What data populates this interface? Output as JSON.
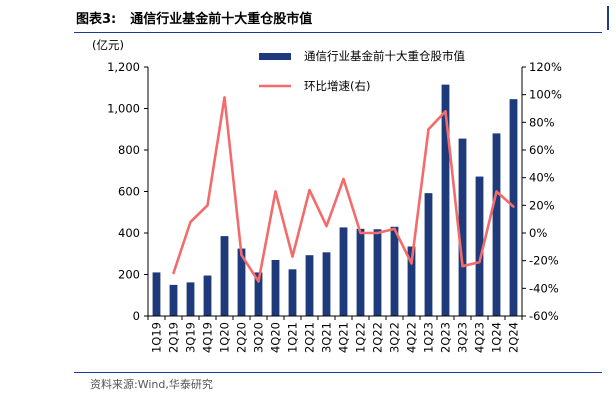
{
  "header": {
    "figure_label": "图表3:",
    "title": "通信行业基金前十大重仓股市值"
  },
  "footer": {
    "source": "资料来源:Wind,华泰研究"
  },
  "chart_data": {
    "type": "bar",
    "categories": [
      "1Q19",
      "2Q19",
      "3Q19",
      "4Q19",
      "1Q20",
      "2Q20",
      "3Q20",
      "4Q20",
      "1Q21",
      "2Q21",
      "3Q21",
      "4Q21",
      "1Q22",
      "2Q22",
      "3Q22",
      "4Q22",
      "1Q23",
      "2Q23",
      "3Q23",
      "4Q23",
      "1Q24",
      "2Q24"
    ],
    "left_axis_unit": "(亿元)",
    "left_ticks": [
      "0",
      "200",
      "400",
      "600",
      "800",
      "1,000",
      "1,200"
    ],
    "right_ticks": [
      "-60%",
      "-40%",
      "-20%",
      "0%",
      "20%",
      "40%",
      "60%",
      "80%",
      "100%",
      "120%"
    ],
    "ylim_left": [
      0,
      1200
    ],
    "ylim_right": [
      -60,
      120
    ],
    "series": [
      {
        "name": "通信行业基金前十大重仓股市值",
        "type": "bar",
        "axis": "left",
        "color": "#1f3a7a",
        "values": [
          210,
          150,
          162,
          195,
          385,
          325,
          210,
          270,
          225,
          293,
          307,
          427,
          420,
          418,
          430,
          335,
          592,
          1115,
          855,
          672,
          880,
          1045
        ]
      },
      {
        "name": "环比增速(右)",
        "type": "line",
        "axis": "right",
        "color": "#f36b6b",
        "values": [
          null,
          -29,
          8,
          20,
          98,
          -16,
          -35,
          30,
          -17,
          31,
          5,
          39,
          0,
          0,
          3,
          -22,
          75,
          88,
          -24,
          -21,
          30,
          19
        ]
      }
    ],
    "legend_position": "top",
    "grid": false
  }
}
